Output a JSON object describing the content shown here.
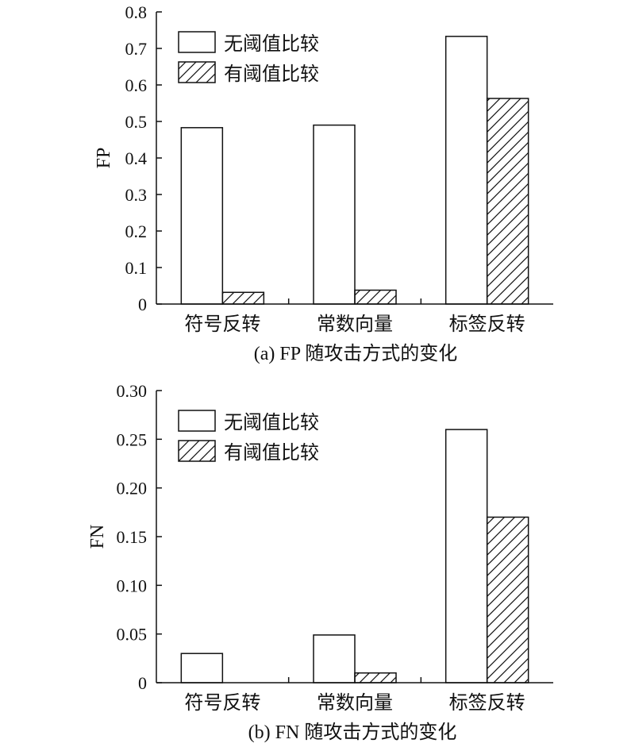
{
  "chart_data": [
    {
      "type": "bar",
      "caption": "(a) FP 随攻击方式的变化",
      "ylabel": "FP",
      "ylim": [
        0,
        0.8
      ],
      "yticks": [
        "0",
        "0.1",
        "0.2",
        "0.3",
        "0.4",
        "0.5",
        "0.6",
        "0.7",
        "0.8"
      ],
      "categories": [
        "符号反转",
        "常数向量",
        "标签反转"
      ],
      "series": [
        {
          "name": "无阈值比较",
          "values": [
            0.483,
            0.49,
            0.733
          ],
          "fill": "white"
        },
        {
          "name": "有阈值比较",
          "values": [
            0.032,
            0.038,
            0.563
          ],
          "fill": "hatch"
        }
      ],
      "legend": "top-left"
    },
    {
      "type": "bar",
      "caption": "(b) FN 随攻击方式的变化",
      "ylabel": "FN",
      "ylim": [
        0,
        0.3
      ],
      "yticks": [
        "0",
        "0.05",
        "0.10",
        "0.15",
        "0.20",
        "0.25",
        "0.30"
      ],
      "categories": [
        "符号反转",
        "常数向量",
        "标签反转"
      ],
      "series": [
        {
          "name": "无阈值比较",
          "values": [
            0.03,
            0.049,
            0.26
          ],
          "fill": "white"
        },
        {
          "name": "有阈值比较",
          "values": [
            0.0,
            0.01,
            0.17
          ],
          "fill": "hatch"
        }
      ],
      "legend": "top-left"
    }
  ]
}
